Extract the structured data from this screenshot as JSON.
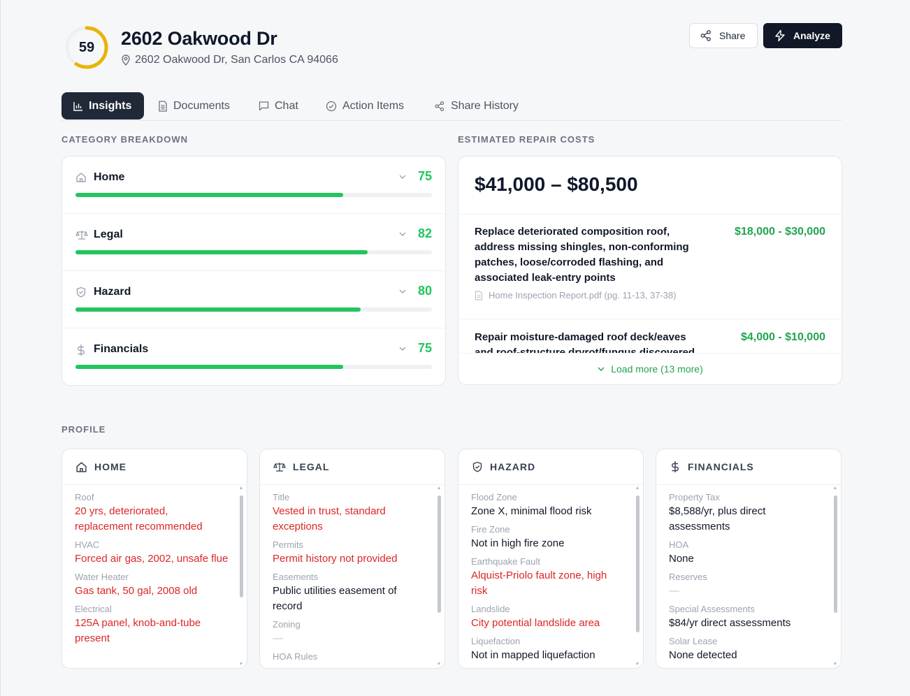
{
  "header": {
    "score": "59",
    "score_fraction": 0.59,
    "title": "2602 Oakwood Dr",
    "address": "2602 Oakwood Dr, San Carlos CA 94066",
    "share_label": "Share",
    "analyze_label": "Analyze"
  },
  "tabs": [
    {
      "label": "Insights",
      "icon": "bar-chart-icon"
    },
    {
      "label": "Documents",
      "icon": "document-icon"
    },
    {
      "label": "Chat",
      "icon": "chat-icon"
    },
    {
      "label": "Action Items",
      "icon": "check-circle-icon"
    },
    {
      "label": "Share History",
      "icon": "share-icon"
    }
  ],
  "category_breakdown": {
    "heading": "CATEGORY BREAKDOWN",
    "items": [
      {
        "label": "Home",
        "value": "75",
        "fraction": 0.75,
        "icon": "home-icon"
      },
      {
        "label": "Legal",
        "value": "82",
        "fraction": 0.82,
        "icon": "scale-icon"
      },
      {
        "label": "Hazard",
        "value": "80",
        "fraction": 0.8,
        "icon": "shield-icon"
      },
      {
        "label": "Financials",
        "value": "75",
        "fraction": 0.75,
        "icon": "dollar-icon"
      }
    ]
  },
  "repair_costs": {
    "heading": "ESTIMATED REPAIR COSTS",
    "total_range": "$41,000 – $80,500",
    "items": [
      {
        "description": "Replace deteriorated composition roof, address missing shingles, non-conforming patches, loose/corroded flashing, and associated leak-entry points",
        "cost": "$18,000 - $30,000",
        "source": "Home Inspection Report.pdf (pg. 11-13, 37-38)"
      },
      {
        "description": "Repair moisture-damaged roof deck/eaves and roof-structure dryrot/fungus discovered",
        "cost": "$4,000 - $10,000"
      }
    ],
    "load_more": "Load more (13 more)"
  },
  "profile": {
    "heading": "PROFILE",
    "cards": [
      {
        "title": "HOME",
        "icon": "home-icon",
        "fields": [
          {
            "key": "Roof",
            "value": "20 yrs, deteriorated, replacement recommended",
            "flag": true
          },
          {
            "key": "HVAC",
            "value": "Forced air gas, 2002, unsafe flue",
            "flag": true
          },
          {
            "key": "Water Heater",
            "value": "Gas tank, 50 gal, 2008 old",
            "flag": true
          },
          {
            "key": "Electrical",
            "value": "125A panel, knob-and-tube present",
            "flag": true
          }
        ]
      },
      {
        "title": "LEGAL",
        "icon": "scale-icon",
        "fields": [
          {
            "key": "Title",
            "value": "Vested in trust, standard exceptions",
            "flag": true
          },
          {
            "key": "Permits",
            "value": "Permit history not provided",
            "flag": true
          },
          {
            "key": "Easements",
            "value": "Public utilities easement of record",
            "flag": false
          },
          {
            "key": "Zoning",
            "value": "—",
            "flag": false
          },
          {
            "key": "HOA Rules",
            "value": "",
            "flag": false
          }
        ]
      },
      {
        "title": "HAZARD",
        "icon": "shield-icon",
        "fields": [
          {
            "key": "Flood Zone",
            "value": "Zone X, minimal flood risk",
            "flag": false
          },
          {
            "key": "Fire Zone",
            "value": "Not in high fire zone",
            "flag": false
          },
          {
            "key": "Earthquake Fault",
            "value": "Alquist-Priolo fault zone, high risk",
            "flag": true
          },
          {
            "key": "Landslide",
            "value": "City potential landslide area",
            "flag": true
          },
          {
            "key": "Liquefaction",
            "value": "Not in mapped liquefaction",
            "flag": false
          }
        ]
      },
      {
        "title": "FINANCIALS",
        "icon": "dollar-icon",
        "fields": [
          {
            "key": "Property Tax",
            "value": "$8,588/yr, plus direct assessments",
            "flag": false
          },
          {
            "key": "HOA",
            "value": "None",
            "flag": false
          },
          {
            "key": "Reserves",
            "value": "—",
            "flag": false
          },
          {
            "key": "Special Assessments",
            "value": "$84/yr direct assessments",
            "flag": false
          },
          {
            "key": "Solar Lease",
            "value": "None detected",
            "flag": false
          }
        ]
      }
    ]
  },
  "colors": {
    "score_ring": "#eab308",
    "accent_green": "#22c55e",
    "flag_red": "#dc2626",
    "dark": "#111827"
  }
}
